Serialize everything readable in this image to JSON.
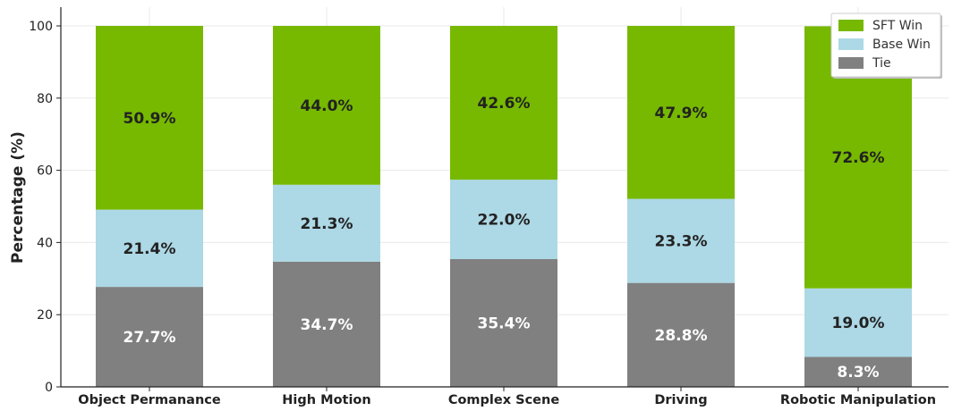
{
  "chart_data": {
    "type": "bar",
    "stacked": true,
    "ylabel": "Percentage (%)",
    "xlabel": "",
    "ylim": [
      0,
      105
    ],
    "yticks": [
      "0",
      "20",
      "40",
      "60",
      "80",
      "100"
    ],
    "grid": true,
    "legend_position": "top-right",
    "categories": [
      "Object Permanance",
      "High Motion",
      "Complex Scene",
      "Driving",
      "Robotic Manipulation"
    ],
    "series": [
      {
        "name": "Tie",
        "color": "#808080",
        "label_color": "#ffffff",
        "values": [
          27.7,
          34.7,
          35.4,
          28.8,
          8.3
        ],
        "labels": [
          "27.7%",
          "34.7%",
          "35.4%",
          "28.8%",
          "8.3%"
        ]
      },
      {
        "name": "Base Win",
        "color": "#add8e6",
        "label_color": "#222222",
        "values": [
          21.4,
          21.3,
          22.0,
          23.3,
          19.0
        ],
        "labels": [
          "21.4%",
          "21.3%",
          "22.0%",
          "23.3%",
          "19.0%"
        ]
      },
      {
        "name": "SFT Win",
        "color": "#76b900",
        "label_color": "#222222",
        "values": [
          50.9,
          44.0,
          42.6,
          47.9,
          72.6
        ],
        "labels": [
          "50.9%",
          "44.0%",
          "42.6%",
          "47.9%",
          "72.6%"
        ]
      }
    ],
    "legend_order": [
      "SFT Win",
      "Base Win",
      "Tie"
    ]
  }
}
